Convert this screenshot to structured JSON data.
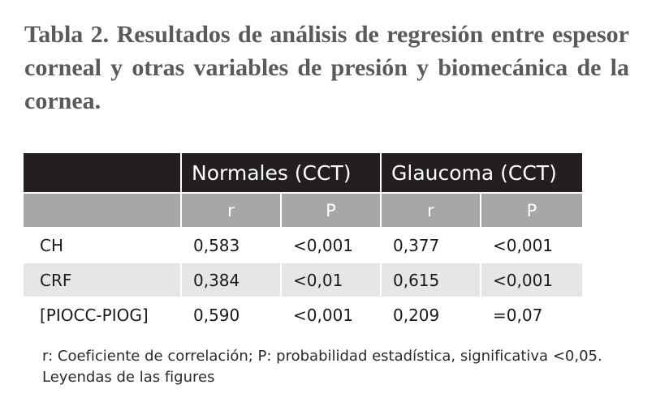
{
  "header": {
    "title": "Tabla 2. Resultados de análisis de regresión entre espesor corneal y otras variables de presión y biomecánica de la cornea."
  },
  "table": {
    "groups": [
      "Normales (CCT)",
      "Glaucoma (CCT)"
    ],
    "subheader": [
      "r",
      "P",
      "r",
      "P"
    ],
    "rows": [
      [
        "CH",
        "0,583",
        "<0,001",
        "0,377",
        "<0,001"
      ],
      [
        "CRF",
        "0,384",
        "<0,01",
        "0,615",
        "<0,001"
      ],
      [
        "[PIOCC-PIOG]",
        "0,590",
        "<0,001",
        "0,209",
        "=0,07"
      ]
    ]
  },
  "footnote": [
    "r: Coeficiente de correlación; P: probabilidad estadística, significativa <0,05.",
    "Leyendas de las figures"
  ]
}
